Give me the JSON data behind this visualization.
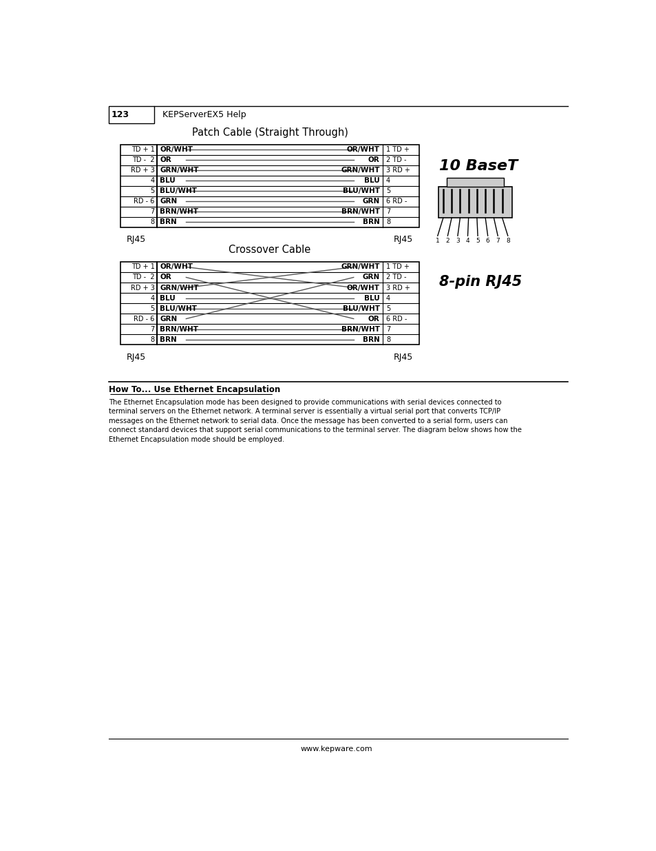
{
  "page_header": {
    "number": "123",
    "title": "KEPServerEX5 Help"
  },
  "patch_title": "Patch Cable (Straight Through)",
  "crossover_title": "Crossover Cable",
  "rj45": "RJ45",
  "baset_label": "10 BaseT",
  "pin_label": "8-pin RJ45",
  "patch_rows": [
    {
      "left_signal": "TD + 1",
      "left_wire": "OR/WHT",
      "right_wire": "OR/WHT",
      "right_signal": "1 TD +"
    },
    {
      "left_signal": "TD -  2",
      "left_wire": "OR",
      "right_wire": "OR",
      "right_signal": "2 TD -"
    },
    {
      "left_signal": "RD + 3",
      "left_wire": "GRN/WHT",
      "right_wire": "GRN/WHT",
      "right_signal": "3 RD +"
    },
    {
      "left_signal": "4",
      "left_wire": "BLU",
      "right_wire": "BLU",
      "right_signal": "4"
    },
    {
      "left_signal": "5",
      "left_wire": "BLU/WHT",
      "right_wire": "BLU/WHT",
      "right_signal": "5"
    },
    {
      "left_signal": "RD - 6",
      "left_wire": "GRN",
      "right_wire": "GRN",
      "right_signal": "6 RD -"
    },
    {
      "left_signal": "7",
      "left_wire": "BRN/WHT",
      "right_wire": "BRN/WHT",
      "right_signal": "7"
    },
    {
      "left_signal": "8",
      "left_wire": "BRN",
      "right_wire": "BRN",
      "right_signal": "8"
    }
  ],
  "crossover_rows": [
    {
      "left_signal": "TD + 1",
      "left_wire": "OR/WHT",
      "right_wire": "GRN/WHT",
      "right_signal": "1 TD +"
    },
    {
      "left_signal": "TD -  2",
      "left_wire": "OR",
      "right_wire": "GRN",
      "right_signal": "2 TD -"
    },
    {
      "left_signal": "RD + 3",
      "left_wire": "GRN/WHT",
      "right_wire": "OR/WHT",
      "right_signal": "3 RD +"
    },
    {
      "left_signal": "4",
      "left_wire": "BLU",
      "right_wire": "BLU",
      "right_signal": "4"
    },
    {
      "left_signal": "5",
      "left_wire": "BLU/WHT",
      "right_wire": "BLU/WHT",
      "right_signal": "5"
    },
    {
      "left_signal": "RD - 6",
      "left_wire": "GRN",
      "right_wire": "OR",
      "right_signal": "6 RD -"
    },
    {
      "left_signal": "7",
      "left_wire": "BRN/WHT",
      "right_wire": "BRN/WHT",
      "right_signal": "7"
    },
    {
      "left_signal": "8",
      "left_wire": "BRN",
      "right_wire": "BRN",
      "right_signal": "8"
    }
  ],
  "how_to_title": "How To... Use Ethernet Encapsulation",
  "how_to_body": "The Ethernet Encapsulation mode has been designed to provide communications with serial devices connected to\nterminal servers on the Ethernet network. A terminal server is essentially a virtual serial port that converts TCP/IP\nmessages on the Ethernet network to serial data. Once the message has been converted to a serial form, users can\nconnect standard devices that support serial communications to the terminal server. The diagram below shows how the\nEthernet Encapsulation mode should be employed.",
  "footer": "www.kepware.com",
  "bg_color": "#ffffff",
  "text_color": "#000000"
}
